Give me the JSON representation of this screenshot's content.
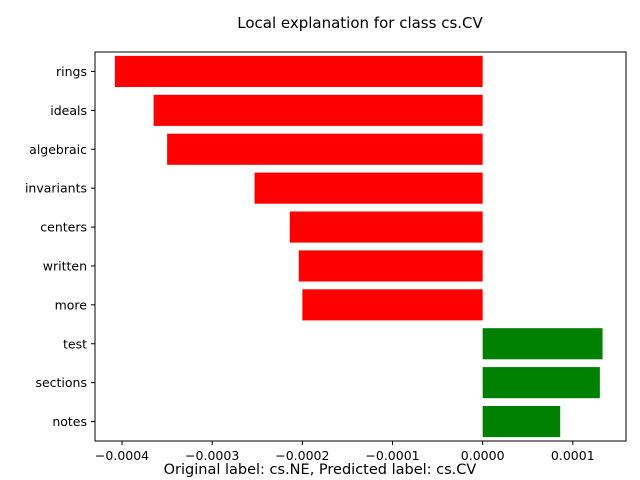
{
  "chart_data": {
    "type": "bar",
    "orientation": "horizontal",
    "title": "Local explanation for class cs.CV",
    "caption": "Original label: cs.NE, Predicted label: cs.CV",
    "categories": [
      "rings",
      "ideals",
      "algebraic",
      "invariants",
      "centers",
      "written",
      "more",
      "test",
      "sections",
      "notes"
    ],
    "values": [
      -0.000408,
      -0.000365,
      -0.00035,
      -0.000253,
      -0.000214,
      -0.000204,
      -0.0002,
      0.000133,
      0.00013,
      8.6e-05
    ],
    "xlim": [
      -0.00043,
      0.000159
    ],
    "xticks": [
      -0.0004,
      -0.0003,
      -0.0002,
      -0.0001,
      0,
      0.0001
    ],
    "xtick_labels": [
      "−0.0004",
      "−0.0003",
      "−0.0002",
      "−0.0001",
      "0.0000",
      "0.0001"
    ],
    "colors": {
      "negative": "#ff0000",
      "positive": "#008000"
    },
    "grid": false
  }
}
